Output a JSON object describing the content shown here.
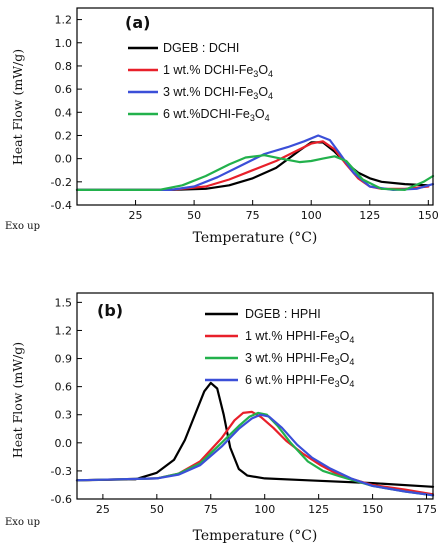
{
  "chart_data": [
    {
      "type": "line",
      "panel_label": "(a)",
      "xlabel": "Temperature (°C)",
      "ylabel": "Heat Flow (mW/g)",
      "corner_note": "Exo up",
      "xlim": [
        0,
        152
      ],
      "ylim": [
        -0.4,
        1.3
      ],
      "xticks": [
        25,
        50,
        75,
        100,
        125,
        150
      ],
      "yticks": [
        -0.4,
        -0.2,
        0.0,
        0.2,
        0.4,
        0.6,
        0.8,
        1.0,
        1.2
      ],
      "ytick_labels": [
        "-0.4",
        "-0.2",
        "0.0",
        "0.2",
        "0.4",
        "0.6",
        "0.8",
        "1.0",
        "1.2"
      ],
      "legend_position": "top-center",
      "series": [
        {
          "name": "DGEB : DCHI",
          "color": "#000000",
          "x": [
            0,
            40,
            55,
            65,
            75,
            85,
            95,
            100,
            105,
            110,
            115,
            120,
            125,
            130,
            140,
            150
          ],
          "y": [
            -0.27,
            -0.27,
            -0.26,
            -0.23,
            -0.17,
            -0.08,
            0.07,
            0.14,
            0.14,
            0.06,
            -0.04,
            -0.12,
            -0.17,
            -0.2,
            -0.22,
            -0.23
          ]
        },
        {
          "name": "1 wt.% DCHI-Fe3O4",
          "color": "#e8202a",
          "x": [
            0,
            40,
            55,
            65,
            75,
            85,
            95,
            100,
            105,
            110,
            115,
            120,
            125,
            130,
            140,
            150
          ],
          "y": [
            -0.27,
            -0.27,
            -0.24,
            -0.18,
            -0.1,
            -0.02,
            0.08,
            0.13,
            0.15,
            0.08,
            -0.05,
            -0.17,
            -0.24,
            -0.26,
            -0.26,
            -0.24
          ]
        },
        {
          "name": "3 wt.% DCHI-Fe3O4",
          "color": "#3b4fd8",
          "x": [
            0,
            40,
            50,
            60,
            70,
            80,
            90,
            97,
            103,
            108,
            112,
            118,
            125,
            135,
            145,
            152
          ],
          "y": [
            -0.27,
            -0.27,
            -0.24,
            -0.16,
            -0.06,
            0.04,
            0.1,
            0.15,
            0.2,
            0.16,
            0.05,
            -0.12,
            -0.24,
            -0.27,
            -0.26,
            -0.22
          ]
        },
        {
          "name": "6 wt.%DCHI-Fe3O4",
          "color": "#22b14c",
          "x": [
            0,
            35,
            45,
            55,
            65,
            72,
            80,
            87,
            95,
            100,
            105,
            110,
            115,
            122,
            130,
            140,
            148,
            152
          ],
          "y": [
            -0.27,
            -0.27,
            -0.23,
            -0.15,
            -0.05,
            0.01,
            0.03,
            0.0,
            -0.03,
            -0.02,
            0.0,
            0.02,
            -0.02,
            -0.18,
            -0.26,
            -0.27,
            -0.2,
            -0.15
          ]
        }
      ]
    },
    {
      "type": "line",
      "panel_label": "(b)",
      "xlabel": "Temperature (°C)",
      "ylabel": "Heat Flow (mW/g)",
      "corner_note": "Exo up",
      "xlim": [
        13,
        178
      ],
      "ylim": [
        -0.6,
        1.6
      ],
      "xticks": [
        25,
        50,
        75,
        100,
        125,
        150,
        175
      ],
      "yticks": [
        -0.6,
        -0.3,
        0.0,
        0.3,
        0.6,
        0.9,
        1.2,
        1.5
      ],
      "ytick_labels": [
        "-0.6",
        "-0.3",
        "0.0",
        "0.3",
        "0.6",
        "0.9",
        "1.2",
        "1.5"
      ],
      "legend_position": "top-right",
      "series": [
        {
          "name": "DGEB : HPHI",
          "color": "#000000",
          "x": [
            13,
            40,
            50,
            58,
            63,
            68,
            72,
            75,
            78,
            81,
            84,
            88,
            92,
            100,
            120,
            150,
            178
          ],
          "y": [
            -0.4,
            -0.39,
            -0.32,
            -0.18,
            0.03,
            0.32,
            0.55,
            0.64,
            0.58,
            0.3,
            -0.05,
            -0.28,
            -0.35,
            -0.38,
            -0.4,
            -0.43,
            -0.47
          ]
        },
        {
          "name": "1 wt.% HPHI-Fe3O4",
          "color": "#e8202a",
          "x": [
            13,
            50,
            60,
            70,
            80,
            86,
            90,
            94,
            98,
            104,
            110,
            118,
            126,
            135,
            150,
            165,
            178
          ],
          "y": [
            -0.4,
            -0.38,
            -0.33,
            -0.2,
            0.05,
            0.24,
            0.32,
            0.33,
            0.28,
            0.16,
            0.02,
            -0.12,
            -0.24,
            -0.35,
            -0.45,
            -0.5,
            -0.55
          ]
        },
        {
          "name": "3 wt.% HPHI-Fe3O4",
          "color": "#22b14c",
          "x": [
            13,
            50,
            60,
            70,
            80,
            88,
            93,
            97,
            101,
            106,
            112,
            120,
            127,
            135,
            150,
            165,
            178
          ],
          "y": [
            -0.4,
            -0.38,
            -0.33,
            -0.22,
            0.0,
            0.18,
            0.28,
            0.32,
            0.3,
            0.18,
            0.0,
            -0.2,
            -0.3,
            -0.36,
            -0.46,
            -0.52,
            -0.56
          ]
        },
        {
          "name": "6 wt.% HPHI-Fe3O4",
          "color": "#3b4fd8",
          "x": [
            13,
            50,
            60,
            70,
            80,
            88,
            94,
            98,
            102,
            108,
            115,
            122,
            130,
            140,
            150,
            165,
            178
          ],
          "y": [
            -0.4,
            -0.38,
            -0.34,
            -0.24,
            -0.04,
            0.15,
            0.26,
            0.3,
            0.28,
            0.16,
            -0.02,
            -0.16,
            -0.27,
            -0.38,
            -0.46,
            -0.52,
            -0.56
          ]
        }
      ]
    }
  ]
}
